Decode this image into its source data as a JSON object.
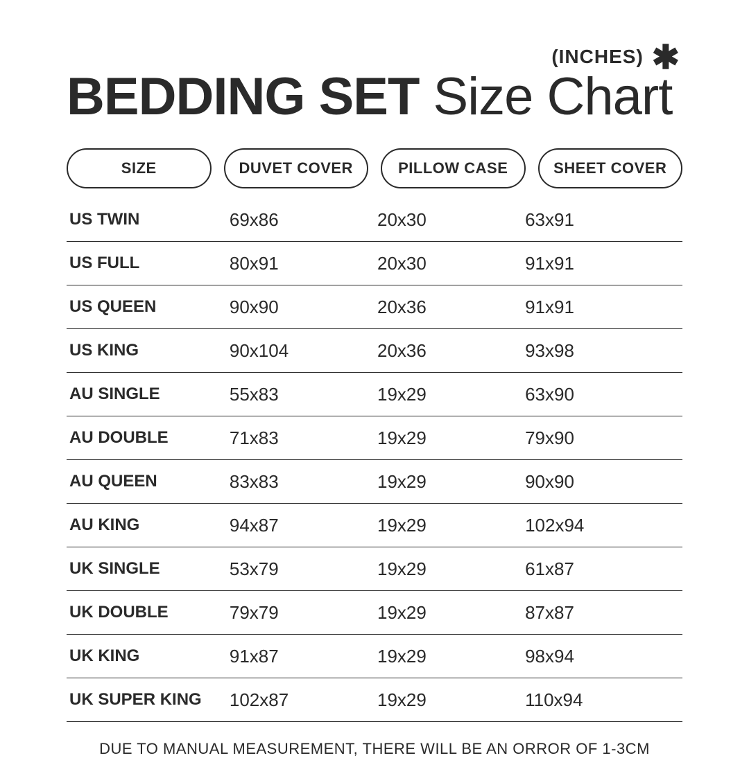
{
  "colors": {
    "text": "#2a2a2a",
    "bg": "#ffffff",
    "border": "#2a2a2a"
  },
  "typography": {
    "title_fontsize": 76,
    "body_fontsize": 26,
    "pill_fontsize": 22,
    "footer_fontsize": 22,
    "title_bold_weight": 900,
    "row_label_weight": 800
  },
  "header": {
    "unit_label": "(INCHES)",
    "asterisk": "✱",
    "title_bold": "BEDDING SET",
    "title_light": "Size Chart"
  },
  "columns": [
    "SIZE",
    "DUVET COVER",
    "PILLOW CASE",
    "SHEET COVER"
  ],
  "rows": [
    {
      "size": "US TWIN",
      "duvet": "69x86",
      "pillow": "20x30",
      "sheet": "63x91"
    },
    {
      "size": "US FULL",
      "duvet": "80x91",
      "pillow": "20x30",
      "sheet": "91x91"
    },
    {
      "size": "US QUEEN",
      "duvet": "90x90",
      "pillow": "20x36",
      "sheet": "91x91"
    },
    {
      "size": "US KING",
      "duvet": "90x104",
      "pillow": "20x36",
      "sheet": "93x98"
    },
    {
      "size": "AU SINGLE",
      "duvet": "55x83",
      "pillow": "19x29",
      "sheet": "63x90"
    },
    {
      "size": "AU DOUBLE",
      "duvet": "71x83",
      "pillow": "19x29",
      "sheet": "79x90"
    },
    {
      "size": "AU QUEEN",
      "duvet": "83x83",
      "pillow": "19x29",
      "sheet": "90x90"
    },
    {
      "size": "AU KING",
      "duvet": "94x87",
      "pillow": "19x29",
      "sheet": "102x94"
    },
    {
      "size": "UK SINGLE",
      "duvet": "53x79",
      "pillow": "19x29",
      "sheet": "61x87"
    },
    {
      "size": "UK DOUBLE",
      "duvet": "79x79",
      "pillow": "19x29",
      "sheet": "87x87"
    },
    {
      "size": "UK KING",
      "duvet": "91x87",
      "pillow": "19x29",
      "sheet": "98x94"
    },
    {
      "size": "UK SUPER KING",
      "duvet": "102x87",
      "pillow": "19x29",
      "sheet": "110x94"
    }
  ],
  "footer": "DUE TO MANUAL MEASUREMENT, THERE WILL BE AN ORROR OF 1-3CM",
  "table_style": {
    "row_border_color": "#2a2a2a",
    "row_border_width": 1,
    "pill_border_width": 2,
    "pill_radius": 999
  }
}
